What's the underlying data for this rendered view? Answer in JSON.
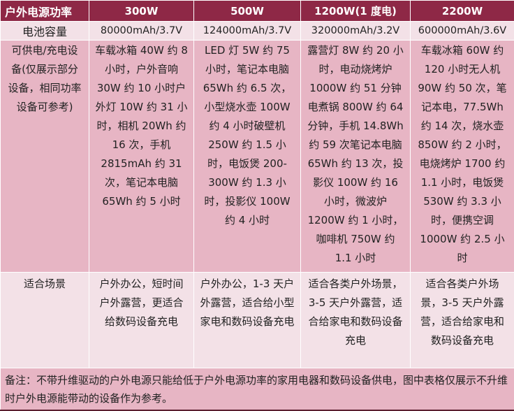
{
  "table": {
    "headers": [
      "户外电源功率",
      "300W",
      "500W",
      "1200W(1 度电)",
      "2200W"
    ],
    "capacity": {
      "label": "电池容量",
      "values": [
        "80000mAh/3.7V",
        "124000mAh/3.7V",
        "320000mAh/3.2V",
        "600000mAh/3.6V"
      ]
    },
    "devices": {
      "label": "可供电/充电设备(仅展示部分设备，相同功率设备可参考)",
      "values": [
        "车载冰箱 40W 约 8 小时，户外音响 30W 约 10 小时户外灯 10W 约 31 小时，相机 20Wh 约 16 次，手机 2815mAh 约 31 次，笔记本电脑 65Wh 约 5 小时",
        "LED 灯 5W 约 75 小时，笔记本电脑 65Wh 约 6.5 次，小型烧水壶 100W 约 4 小时破壁机 250W 约 1.5 小时，电饭煲 200-300W 约 1.3 小时，投影仪 100W 约 4 小时",
        "露营灯 8W 约 20 小时，电动烧烤炉 1000W 约 51 分钟电煮锅 800W 约 64 分钟，手机 14.8Wh 约 59 次笔记本电脑 65Wh 约 13 次，投影仪 100W 约 16 小时，微波炉 1200W 约 1 小时，咖啡机 750W 约 1.1 小时",
        "车载冰箱 60W 约 120 小时无人机 90W 约 50 次，笔记本电，77.5Wh 约 14 次，烧水壶 850W 约 2 小时，电烧烤炉 1700 约 1.1 小时，电饭煲 530W 约 3.3 小时，便携空调 1000W 约 2.5 小时"
      ]
    },
    "scenarios": {
      "label": "适合场景",
      "values": [
        "户外办公，短时间户外露营，更适合给数码设备充电",
        "户外办公，1-3 天户外露营，适合给小型家电和数码设备充电",
        "适合各类户外场景，3-5 天户外露营，适合给家电和数码设备充电",
        "适合各类户外场景，3-5 天户外露营，适合给家电和数码设备充电"
      ]
    },
    "note": "备注：不带升维驱动的户外电源只能给低于户外电源功率的家用电器和数码设备供电，图中表格仅展示不升维时户外电源能带动的设备作为参考。"
  },
  "colors": {
    "header": "#8e2846",
    "row_light": "#f3e1e7",
    "row_dark": "#e7b5c4"
  }
}
